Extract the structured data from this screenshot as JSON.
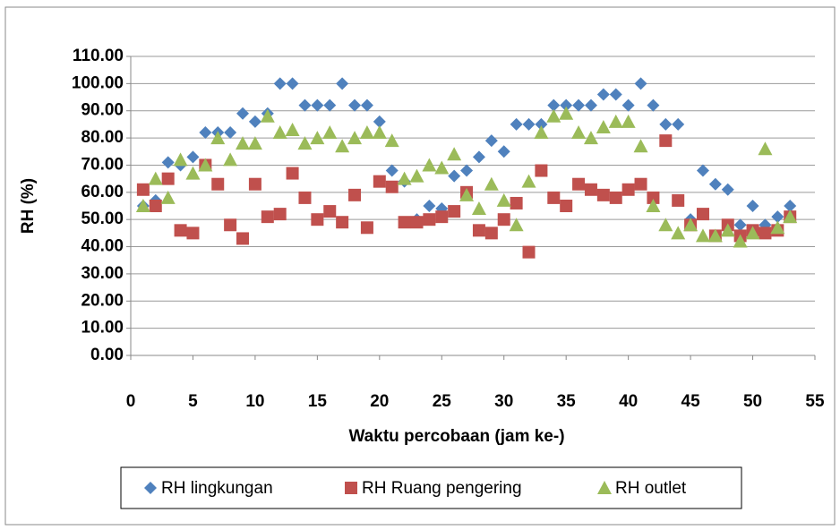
{
  "chart_data": {
    "type": "scatter",
    "xlabel": "Waktu  percobaan (jam ke-)",
    "ylabel": "RH (%)",
    "xlim": [
      0,
      55
    ],
    "xticks": [
      0,
      5,
      10,
      15,
      20,
      25,
      30,
      35,
      40,
      45,
      50,
      55
    ],
    "ylim": [
      0,
      110
    ],
    "yticks": [
      {
        "value": 0,
        "label": "0.00"
      },
      {
        "value": 10,
        "label": "10.00"
      },
      {
        "value": 20,
        "label": "20.00"
      },
      {
        "value": 30,
        "label": "30.00"
      },
      {
        "value": 40,
        "label": "40.00"
      },
      {
        "value": 50,
        "label": "50.00"
      },
      {
        "value": 60,
        "label": "60.00"
      },
      {
        "value": 70,
        "label": "70.00"
      },
      {
        "value": 80,
        "label": "80.00"
      },
      {
        "value": 90,
        "label": "90.00"
      },
      {
        "value": 100,
        "label": "100.00"
      },
      {
        "value": 110,
        "label": "110.00"
      }
    ],
    "grid": true,
    "legend": "bottom",
    "x": [
      1,
      2,
      3,
      4,
      5,
      6,
      7,
      8,
      9,
      10,
      11,
      12,
      13,
      14,
      15,
      16,
      17,
      18,
      19,
      20,
      21,
      22,
      23,
      24,
      25,
      26,
      27,
      28,
      29,
      30,
      31,
      32,
      33,
      34,
      35,
      36,
      37,
      38,
      39,
      40,
      41,
      42,
      43,
      44,
      45,
      46,
      47,
      48,
      49,
      50,
      51,
      52,
      53
    ],
    "series": [
      {
        "name": "RH lingkungan",
        "color": "#4f81bd",
        "marker": "diamond",
        "values": [
          55,
          57,
          71,
          70,
          73,
          82,
          82,
          82,
          89,
          86,
          89,
          100,
          100,
          92,
          92,
          92,
          100,
          92,
          92,
          86,
          68,
          64,
          50,
          55,
          54,
          66,
          68,
          73,
          79,
          75,
          85,
          85,
          85,
          92,
          92,
          92,
          92,
          96,
          96,
          92,
          100,
          92,
          85,
          85,
          50,
          68,
          63,
          61,
          48,
          55,
          48,
          51,
          55
        ]
      },
      {
        "name": "RH Ruang pengering",
        "color": "#c0504d",
        "marker": "square",
        "values": [
          61,
          55,
          65,
          46,
          45,
          70,
          63,
          48,
          43,
          63,
          51,
          52,
          67,
          58,
          50,
          53,
          49,
          59,
          47,
          64,
          62,
          49,
          49,
          50,
          51,
          53,
          60,
          46,
          45,
          50,
          56,
          38,
          68,
          58,
          55,
          63,
          61,
          59,
          58,
          61,
          63,
          58,
          79,
          57,
          48,
          52,
          44,
          48,
          44,
          46,
          45,
          46,
          51
        ]
      },
      {
        "name": "RH outlet",
        "color": "#9bbb59",
        "marker": "triangle",
        "values": [
          55,
          65,
          58,
          72,
          67,
          70,
          80,
          72,
          78,
          78,
          88,
          82,
          83,
          78,
          80,
          82,
          77,
          80,
          82,
          82,
          79,
          65,
          66,
          70,
          69,
          74,
          59,
          54,
          63,
          57,
          48,
          64,
          82,
          88,
          89,
          82,
          80,
          84,
          86,
          86,
          77,
          55,
          48,
          45,
          48,
          44,
          44,
          46,
          42,
          45,
          76,
          47,
          51
        ]
      }
    ]
  }
}
